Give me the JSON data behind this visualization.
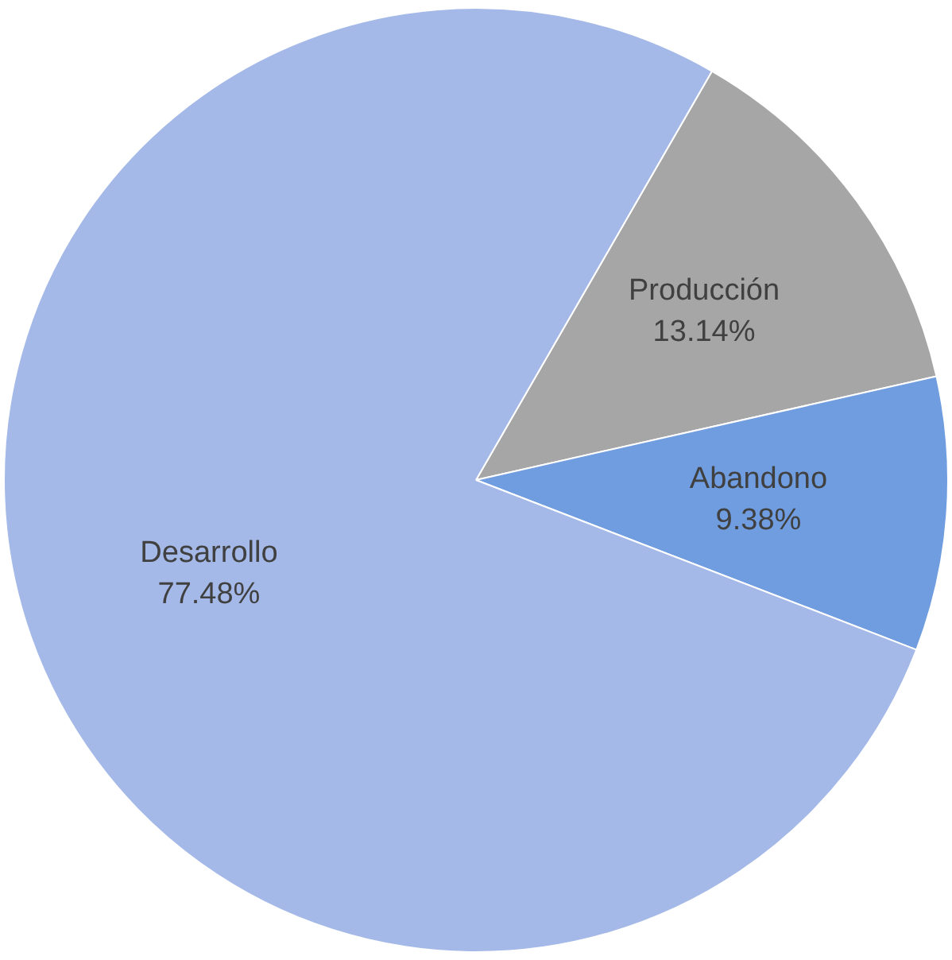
{
  "chart_data": {
    "type": "pie",
    "categories": [
      "Producción",
      "Abandono",
      "Desarrollo"
    ],
    "values": [
      13.14,
      9.38,
      77.48
    ],
    "value_labels": [
      "13.14%",
      "9.38%",
      "77.48%"
    ],
    "colors": [
      "#a6a6a6",
      "#6f9de0",
      "#a4b9e8"
    ],
    "legend": false
  }
}
